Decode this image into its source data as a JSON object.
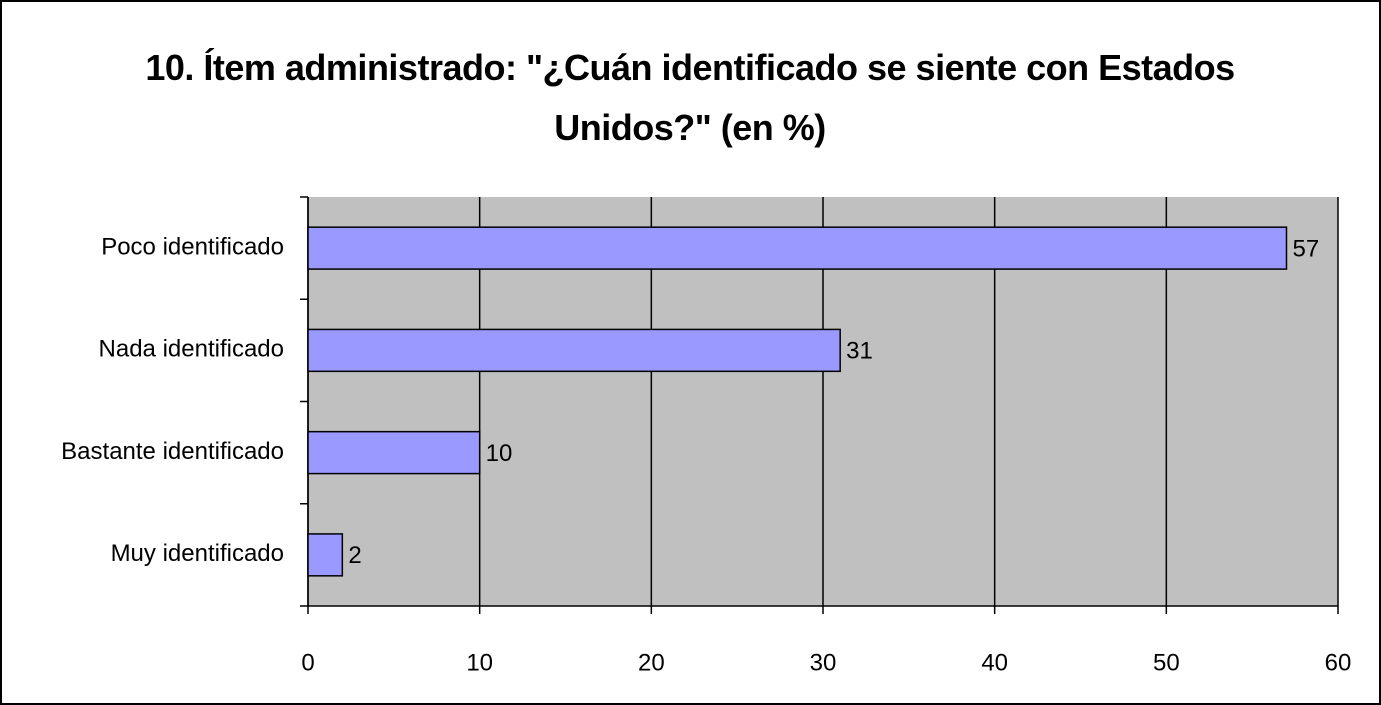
{
  "chart_data": {
    "type": "bar",
    "orientation": "horizontal",
    "title": "10. Ítem administrado: \"¿Cuán identificado se siente con Estados Unidos?\" (en %)",
    "categories": [
      "Poco identificado",
      "Nada identificado",
      "Bastante identificado",
      "Muy identificado"
    ],
    "values": [
      57,
      31,
      10,
      2
    ],
    "color": "#9999ff",
    "xlim": [
      0,
      60
    ],
    "xticks": [
      0,
      10,
      20,
      30,
      40,
      50,
      60
    ],
    "grid": true
  }
}
